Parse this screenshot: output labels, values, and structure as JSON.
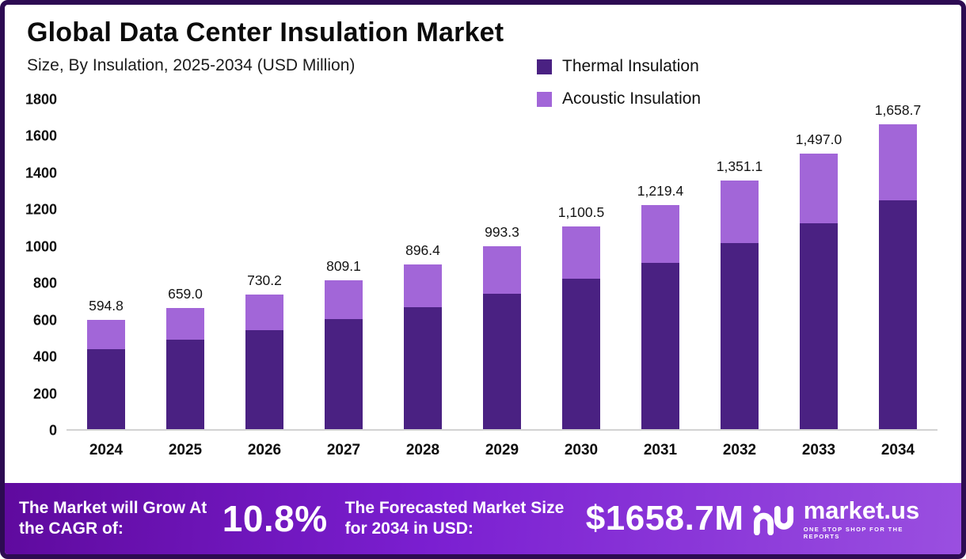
{
  "title": "Global Data Center Insulation Market",
  "subtitle": "Size, By Insulation, 2025-2034 (USD Million)",
  "legend": [
    {
      "label": "Thermal Insulation",
      "color": "#4a2182"
    },
    {
      "label": "Acoustic Insulation",
      "color": "#a266d8"
    }
  ],
  "colors": {
    "frame_border": "#2d0b52",
    "thermal": "#4a2182",
    "acoustic": "#a266d8",
    "banner_gradient_start": "#5f0a9e",
    "banner_gradient_end": "#9a4fe0",
    "axis_line": "#d2d2d2"
  },
  "chart_data": {
    "type": "bar",
    "stacked": true,
    "title": "Global Data Center Insulation Market",
    "subtitle": "Size, By Insulation, 2025-2034 (USD Million)",
    "xlabel": "",
    "ylabel": "USD Million",
    "categories": [
      "2024",
      "2025",
      "2026",
      "2027",
      "2028",
      "2029",
      "2030",
      "2031",
      "2032",
      "2033",
      "2034"
    ],
    "series": [
      {
        "name": "Thermal Insulation",
        "color": "#4a2182",
        "values": [
          436,
          485,
          537,
          600,
          663,
          737,
          820,
          906,
          1010,
          1120,
          1243
        ]
      },
      {
        "name": "Acoustic Insulation",
        "color": "#a266d8",
        "values": [
          158.8,
          174.0,
          193.2,
          209.1,
          233.4,
          256.3,
          280.5,
          313.4,
          341.1,
          377.0,
          415.7
        ]
      }
    ],
    "totals": [
      594.8,
      659.0,
      730.2,
      809.1,
      896.4,
      993.3,
      1100.5,
      1219.4,
      1351.1,
      1497.0,
      1658.7
    ],
    "total_labels": [
      "594.8",
      "659.0",
      "730.2",
      "809.1",
      "896.4",
      "993.3",
      "1,100.5",
      "1,219.4",
      "1,351.1",
      "1,497.0",
      "1,658.7"
    ],
    "ylim": [
      0,
      1800
    ],
    "yticks": [
      0,
      200,
      400,
      600,
      800,
      1000,
      1200,
      1400,
      1600,
      1800
    ],
    "grid": false,
    "legend_position": "top-right"
  },
  "banner": {
    "cagr_label": "The Market will Grow At the CAGR of:",
    "cagr_value": "10.8%",
    "forecast_label": "The Forecasted Market Size for 2034 in USD:",
    "forecast_value": "$1658.7M",
    "brand": "market.us",
    "brand_tagline": "ONE STOP SHOP FOR THE REPORTS"
  }
}
